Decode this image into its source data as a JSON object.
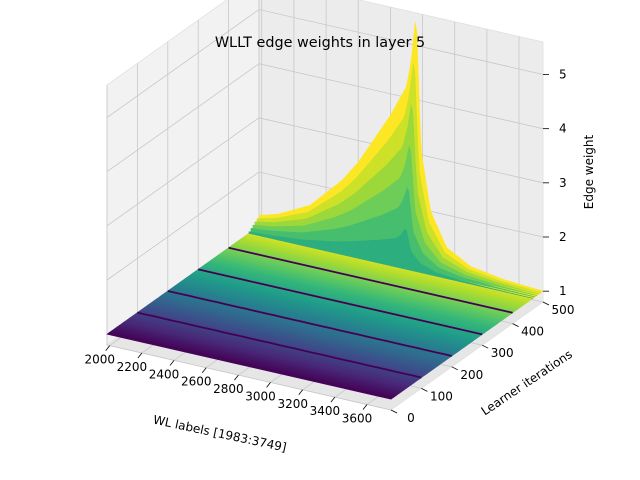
{
  "chart_data": {
    "type": "surface",
    "title": "WLLT edge weights in layer 5",
    "xlabel": "WL labels [1983:3749]",
    "ylabel": "Learner iterations",
    "zlabel": "Edge weight",
    "x_ticks": [
      "2000",
      "2200",
      "2400",
      "2600",
      "2800",
      "3000",
      "3200",
      "3400",
      "3600"
    ],
    "y_ticks": [
      "0",
      "100",
      "200",
      "300",
      "400",
      "500"
    ],
    "z_ticks": [
      "1",
      "2",
      "3",
      "4",
      "5"
    ],
    "xlim": [
      1983,
      3749
    ],
    "ylim": [
      0,
      500
    ],
    "zlim": [
      0.8,
      5.6
    ],
    "colormap": "viridis",
    "grid": true,
    "highlighted_iterations": [
      100,
      200,
      300,
      400
    ],
    "highlight_color": "#440154",
    "peak": {
      "wl_label": 2960,
      "edge_weight": 5.6
    },
    "ridge": [
      [
        1983,
        1.2
      ],
      [
        2100,
        1.3
      ],
      [
        2200,
        1.45
      ],
      [
        2300,
        1.6
      ],
      [
        2400,
        1.9
      ],
      [
        2500,
        2.2
      ],
      [
        2600,
        2.6
      ],
      [
        2700,
        3.1
      ],
      [
        2800,
        3.6
      ],
      [
        2900,
        4.2
      ],
      [
        2930,
        4.7
      ],
      [
        2960,
        5.6
      ],
      [
        2990,
        3.1
      ],
      [
        3050,
        2.0
      ],
      [
        3150,
        1.4
      ],
      [
        3300,
        1.15
      ],
      [
        3500,
        1.05
      ],
      [
        3749,
        1.0
      ]
    ]
  }
}
